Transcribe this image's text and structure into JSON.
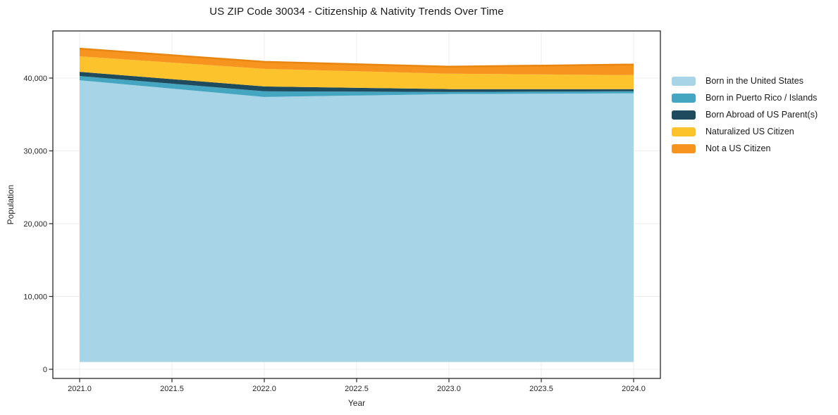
{
  "chart_data": {
    "type": "area",
    "stacked": true,
    "title": "US ZIP Code 30034 - Citizenship & Nativity Trends Over Time",
    "xlabel": "Year",
    "ylabel": "Population",
    "x": [
      2021,
      2022,
      2023,
      2024
    ],
    "baseline": 1000,
    "series": [
      {
        "name": "Born in the United States",
        "color": "#a8d4e8",
        "values": [
          39700,
          37400,
          37800,
          37900
        ]
      },
      {
        "name": "Born in Puerto Rico / Islands",
        "color": "#45a6c2",
        "values": [
          580,
          780,
          290,
          290
        ]
      },
      {
        "name": "Born Abroad of US Parent(s)",
        "color": "#1f4b5e",
        "values": [
          580,
          670,
          390,
          290
        ]
      },
      {
        "name": "Naturalized US Citizen",
        "color": "#fcc32d",
        "values": [
          2130,
          2420,
          2120,
          1930
        ]
      },
      {
        "name": "Not a US Citizen",
        "color": "#f79420",
        "values": [
          1060,
          960,
          970,
          1450
        ],
        "edge_color": "#e8860f"
      }
    ],
    "x_ticks": {
      "values": [
        2021,
        2021.5,
        2022,
        2022.5,
        2023,
        2023.5,
        2024
      ],
      "labels": [
        "2021.0",
        "2021.5",
        "2022.0",
        "2022.5",
        "2023.0",
        "2023.5",
        "2024.0"
      ]
    },
    "y_ticks": {
      "values": [
        0,
        10000,
        20000,
        30000,
        40000
      ],
      "labels": [
        "0",
        "10,000",
        "20,000",
        "30,000",
        "40,000"
      ]
    },
    "xlim": [
      2020.85,
      2024.15
    ],
    "ylim": [
      -1250,
      46400
    ],
    "grid": true,
    "grid_color": "#ececec",
    "frame_color": "#262626",
    "legend_position": "right"
  }
}
